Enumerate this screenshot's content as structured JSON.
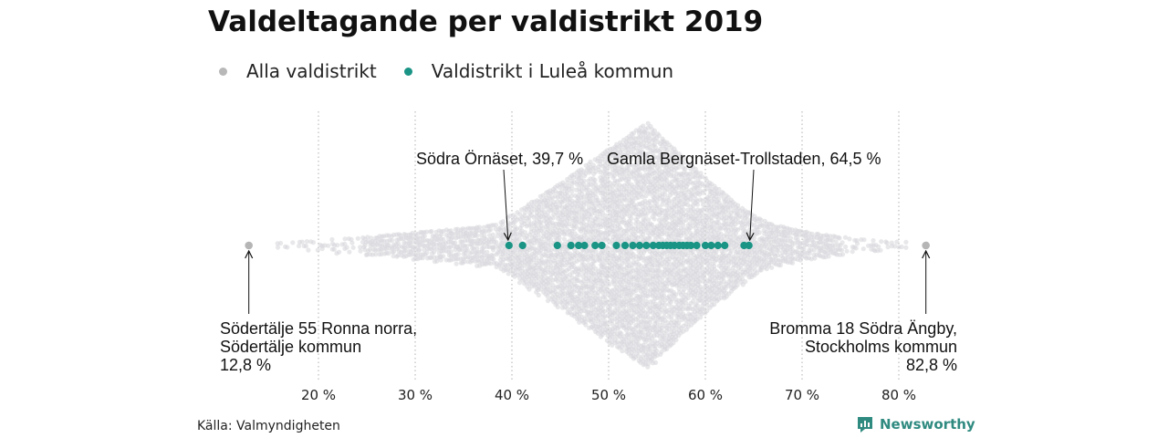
{
  "title": "Valdeltagande per valdistrikt 2019",
  "legend": [
    {
      "label": "Alla valdistrikt",
      "color": "#b8b8b8"
    },
    {
      "label": "Valdistrikt i Luleå kommun",
      "color": "#1a9485"
    }
  ],
  "source": "Källa: Valmyndigheten",
  "brand": "Newsworthy",
  "chart_data": {
    "type": "scatter",
    "subtype": "beeswarm",
    "x_ticks": [
      20,
      30,
      40,
      50,
      60,
      70,
      80
    ],
    "x_tick_labels": [
      "20 %",
      "30 %",
      "40 %",
      "50 %",
      "60 %",
      "70 %",
      "80 %"
    ],
    "xlim": [
      10,
      87
    ],
    "grid": "vertical dotted",
    "series": [
      {
        "name": "Alla valdistrikt",
        "color": "#d6d6da",
        "distribution_range": [
          12.8,
          82.8
        ],
        "peak_approx": 54
      },
      {
        "name": "Valdistrikt i Luleå kommun",
        "color": "#1a9485",
        "values": [
          39.7,
          41.1,
          44.7,
          46.1,
          46.9,
          47.5,
          48.6,
          49.3,
          50.8,
          51.7,
          52.5,
          53.2,
          53.9,
          54.6,
          55.2,
          55.6,
          56.0,
          56.4,
          56.8,
          57.3,
          57.7,
          58.1,
          58.5,
          59.1,
          60.0,
          60.6,
          61.3,
          62.0,
          64.0,
          64.5
        ]
      }
    ],
    "annotations": [
      {
        "label": "Södra Örnäset, 39,7 %",
        "x": 39.7
      },
      {
        "label": "Gamla Bergnäset-Trollstaden, 64,5 %",
        "x": 64.5
      },
      {
        "lines": [
          "Södertälje 55 Ronna norra,",
          "Södertälje kommun",
          "12,8 %"
        ],
        "x": 12.8
      },
      {
        "lines": [
          "Bromma 18 Södra Ängby,",
          "Stockholms kommun",
          "82,8 %"
        ],
        "x": 82.8
      }
    ]
  }
}
